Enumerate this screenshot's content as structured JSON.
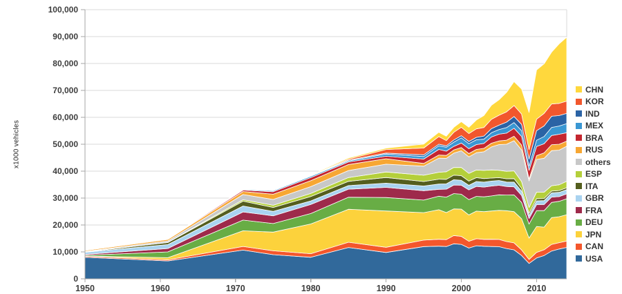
{
  "chart_data": {
    "type": "area",
    "stacked": true,
    "title": "",
    "ylabel": "x1000 vehicles",
    "xlabel": "",
    "grid": "horizontal",
    "legend_position": "right",
    "xlim": [
      1950,
      2014
    ],
    "ylim": [
      0,
      100000
    ],
    "x": [
      1950,
      1961,
      1971,
      1975,
      1980,
      1985,
      1990,
      1995,
      1997,
      1998,
      1999,
      2000,
      2001,
      2002,
      2003,
      2004,
      2005,
      2006,
      2007,
      2008,
      2009,
      2010,
      2011,
      2012,
      2013,
      2014
    ],
    "x_ticks": [
      1950,
      1960,
      1970,
      1980,
      1990,
      2000,
      2010
    ],
    "x_tick_labels": [
      "1950",
      "1960",
      "1970",
      "1980",
      "1990",
      "2000",
      "2010"
    ],
    "y_ticks": [
      0,
      10000,
      20000,
      30000,
      40000,
      50000,
      60000,
      70000,
      80000,
      90000,
      100000
    ],
    "y_tick_labels": [
      "0",
      "10,000",
      "20,000",
      "30,000",
      "40,000",
      "50,000",
      "60,000",
      "70,000",
      "80,000",
      "90,000",
      "100,000"
    ],
    "colors": {
      "grid": "#D9D9D9",
      "axis": "#A6A6A6",
      "tick_text": "#3D3D3D",
      "area_outline": "#FFFFFF"
    },
    "series_note": "series listed bottom-to-top of stack; legend shows reverse order (CHN on top)",
    "series": [
      {
        "name": "USA",
        "color": "#31699B",
        "values": [
          8006,
          6653,
          10664,
          8987,
          8010,
          11653,
          9783,
          11985,
          12119,
          12003,
          13025,
          12800,
          11425,
          12280,
          12115,
          11989,
          11947,
          11264,
          10781,
          8672,
          5709,
          7743,
          8662,
          10336,
          11066,
          11661
        ]
      },
      {
        "name": "CAN",
        "color": "#F4572C",
        "values": [
          388,
          390,
          1373,
          1424,
          1324,
          1933,
          1947,
          2408,
          2571,
          2568,
          3059,
          2962,
          2533,
          2629,
          2553,
          2712,
          2688,
          2572,
          2579,
          2082,
          1490,
          2068,
          2135,
          2463,
          2380,
          2394
        ]
      },
      {
        "name": "JPN",
        "color": "#FCD23C",
        "values": [
          32,
          814,
          5811,
          6942,
          11043,
          12271,
          13487,
          10196,
          10975,
          10050,
          9895,
          10141,
          9777,
          10257,
          10286,
          10512,
          10800,
          11484,
          11596,
          11576,
          7934,
          9629,
          8399,
          9943,
          9630,
          9775
        ]
      },
      {
        "name": "DEU",
        "color": "#68AD45",
        "values": [
          306,
          2148,
          3983,
          3186,
          3879,
          4446,
          4977,
          4667,
          5023,
          5727,
          5688,
          5527,
          5692,
          5469,
          5507,
          5570,
          5758,
          5820,
          6213,
          6046,
          5210,
          5906,
          6147,
          5649,
          5718,
          5908
        ]
      },
      {
        "name": "FRA",
        "color": "#9E2A4B",
        "values": [
          357,
          1245,
          3010,
          2861,
          3378,
          3016,
          3769,
          3475,
          2580,
          2954,
          3180,
          3348,
          3628,
          3693,
          3620,
          3666,
          3549,
          3169,
          3016,
          2569,
          2048,
          2228,
          2243,
          1968,
          1740,
          1821
        ]
      },
      {
        "name": "GBR",
        "color": "#A9D3F0",
        "values": [
          784,
          1464,
          2199,
          1648,
          1313,
          1314,
          1566,
          1765,
          1936,
          1980,
          1974,
          1814,
          1685,
          1823,
          1846,
          1857,
          1803,
          1648,
          1750,
          1650,
          1090,
          1393,
          1464,
          1577,
          1598,
          1599
        ]
      },
      {
        "name": "ITA",
        "color": "#545E1E",
        "values": [
          128,
          759,
          1817,
          1459,
          1612,
          1573,
          2121,
          1667,
          1828,
          1693,
          1704,
          1738,
          1580,
          1427,
          1322,
          1142,
          1038,
          1212,
          1284,
          1024,
          843,
          838,
          790,
          672,
          658,
          698
        ]
      },
      {
        "name": "ESP",
        "color": "#B4CF3B",
        "values": [
          1,
          80,
          533,
          814,
          1182,
          1418,
          2053,
          2334,
          2562,
          2826,
          2852,
          3033,
          2850,
          2855,
          3030,
          3012,
          2752,
          2777,
          2890,
          2542,
          2170,
          2388,
          2354,
          1979,
          2163,
          2403
        ]
      },
      {
        "name": "others",
        "color": "#C8C8C8",
        "values": [
          176,
          520,
          1908,
          2154,
          2512,
          2597,
          2881,
          3340,
          5232,
          4968,
          5314,
          6202,
          6130,
          6414,
          6919,
          8541,
          9531,
          10061,
          11203,
          11727,
          9883,
          12170,
          12609,
          13032,
          12861,
          12990
        ]
      },
      {
        "name": "RUS",
        "color": "#F7A733",
        "values": [
          363,
          555,
          1143,
          1964,
          2199,
          2232,
          2040,
          1030,
          1185,
          1082,
          1169,
          1206,
          1251,
          1220,
          1279,
          1386,
          1355,
          1508,
          1660,
          1790,
          725,
          1403,
          1988,
          2233,
          2184,
          1895
        ]
      },
      {
        "name": "BRA",
        "color": "#C4262F",
        "values": [
          0,
          146,
          516,
          930,
          1165,
          967,
          914,
          1629,
          2070,
          1586,
          1357,
          1682,
          1817,
          1792,
          1828,
          2317,
          2531,
          2612,
          2977,
          3216,
          3183,
          3382,
          3406,
          3403,
          3712,
          3146
        ]
      },
      {
        "name": "MEX",
        "color": "#3A97D3",
        "values": [
          21,
          62,
          211,
          361,
          490,
          398,
          821,
          935,
          1360,
          1453,
          1550,
          1936,
          1841,
          1805,
          1575,
          1577,
          1684,
          2046,
          2095,
          2168,
          1561,
          2342,
          2681,
          3002,
          3055,
          3365
        ]
      },
      {
        "name": "IND",
        "color": "#2B63A5",
        "values": [
          15,
          60,
          88,
          91,
          113,
          276,
          364,
          636,
          595,
          515,
          818,
          801,
          815,
          895,
          1161,
          1511,
          1639,
          2020,
          2254,
          2332,
          2642,
          3557,
          3927,
          4145,
          3898,
          3844
        ]
      },
      {
        "name": "KOR",
        "color": "#F2572D",
        "values": [
          0,
          0,
          23,
          37,
          123,
          378,
          1322,
          2526,
          2818,
          1954,
          2843,
          3115,
          2946,
          3148,
          3178,
          3469,
          3699,
          3840,
          4086,
          3827,
          3513,
          4272,
          4657,
          4562,
          4521,
          4525
        ]
      },
      {
        "name": "CHN",
        "color": "#FFD83D",
        "values": [
          0,
          25,
          100,
          140,
          222,
          437,
          509,
          1453,
          1580,
          1628,
          1830,
          2069,
          2334,
          3287,
          4444,
          5235,
          5708,
          7189,
          8882,
          9299,
          13791,
          18265,
          18419,
          19272,
          22117,
          23723
        ]
      }
    ]
  }
}
